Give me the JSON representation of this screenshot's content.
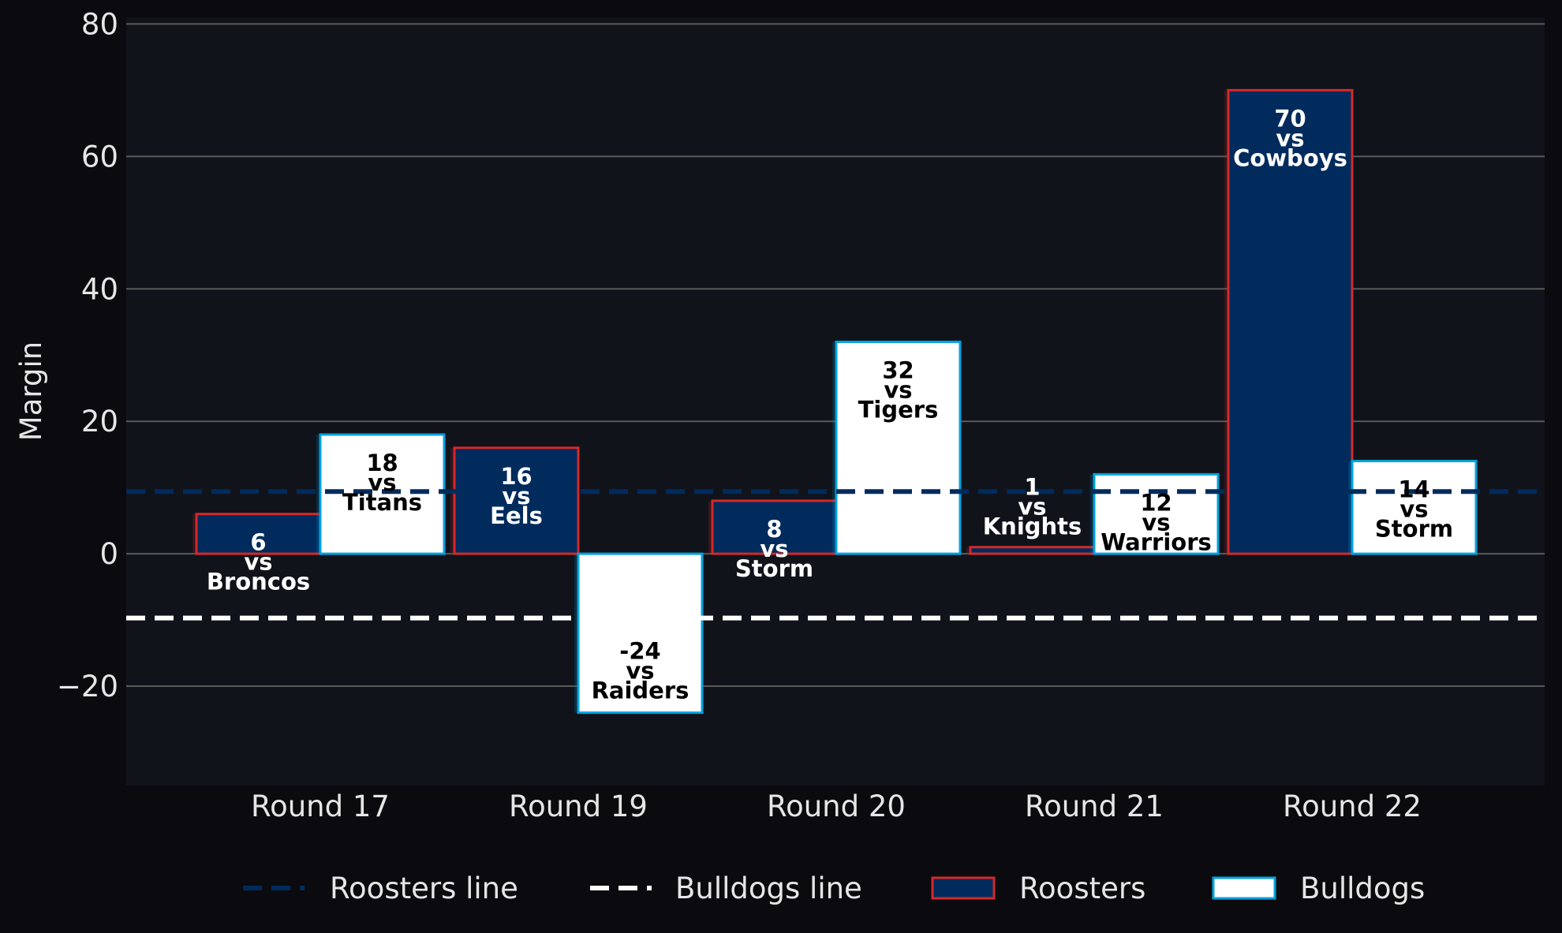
{
  "chart_data": {
    "type": "bar",
    "title": "",
    "xlabel": "",
    "ylabel": "Margin",
    "ylim": [
      -35,
      81
    ],
    "yticks": [
      80,
      60,
      40,
      20,
      0,
      -20
    ],
    "ytick_labels": [
      "80",
      "60",
      "40",
      "20",
      "0",
      "−20"
    ],
    "grid": true,
    "legend_position": "bottom",
    "categories": [
      "Round 17",
      "Round 19",
      "Round 20",
      "Round 21",
      "Round 22"
    ],
    "series": [
      {
        "name": "Roosters",
        "values": [
          6,
          16,
          8,
          1,
          70
        ],
        "opponents": [
          "Broncos",
          "Eels",
          "Storm",
          "Knights",
          "Cowboys"
        ],
        "fill": "#002b5c",
        "edge": "#d62828",
        "label_color": "#ffffff"
      },
      {
        "name": "Bulldogs",
        "values": [
          18,
          -24,
          32,
          12,
          14
        ],
        "opponents": [
          "Titans",
          "Raiders",
          "Tigers",
          "Warriors",
          "Storm"
        ],
        "fill": "#ffffff",
        "edge": "#00a3e0",
        "label_color": "#000000"
      }
    ],
    "bar_labels": [
      [
        "6\nvs\nBroncos",
        "16\nvs\nEels",
        "8\nvs\nStorm",
        "1\nvs\nKnights",
        "70\nvs\nCowboys"
      ],
      [
        "18\nvs\nTitans",
        "-24\nvs\nRaiders",
        "32\nvs\nTigers",
        "12\nvs\nWarriors",
        "14\nvs\nStorm"
      ]
    ],
    "reference_lines": [
      {
        "name": "Roosters line",
        "value": 9.4,
        "color": "#002b5c"
      },
      {
        "name": "Bulldogs line",
        "value": -9.7,
        "color": "#ffffff"
      }
    ],
    "legend": [
      "Roosters line",
      "Bulldogs line",
      "Roosters",
      "Bulldogs"
    ],
    "colors": {
      "background": "#0b0b0f",
      "plot_background": "#11131b",
      "grid": "#5a5a5a",
      "text": "#e6e6e6"
    }
  }
}
